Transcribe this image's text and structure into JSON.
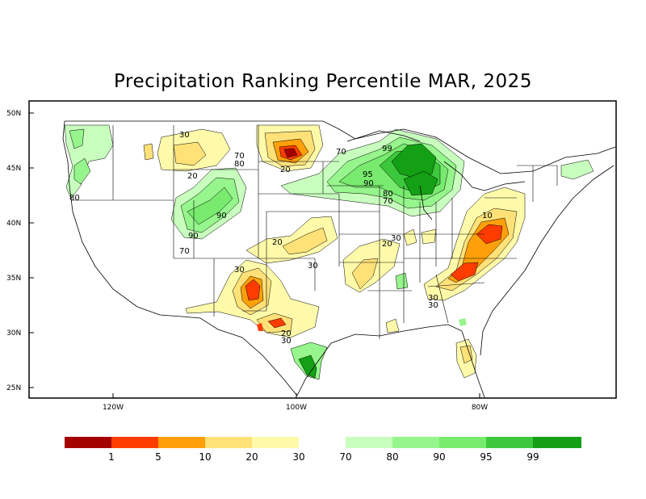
{
  "title": "Precipitation Ranking Percentile MAR, 2025",
  "lat_labels": [
    "50N",
    "45N",
    "40N",
    "35N",
    "30N",
    "25N"
  ],
  "lon_labels": [
    "120W",
    "100W",
    "80W"
  ],
  "legend": {
    "dry": [
      {
        "color": "#a50000"
      },
      {
        "color": "#ff3c00"
      },
      {
        "color": "#ffa00a"
      },
      {
        "color": "#ffe178"
      },
      {
        "color": "#fffaaa"
      }
    ],
    "wet": [
      {
        "color": "#c8ffbe"
      },
      {
        "color": "#96f58c"
      },
      {
        "color": "#78eb6e"
      },
      {
        "color": "#3cc83c"
      },
      {
        "color": "#14a014"
      }
    ],
    "dry_labels": [
      "1",
      "5",
      "10",
      "20",
      "30"
    ],
    "wet_labels": [
      "70",
      "80",
      "90",
      "95",
      "99"
    ]
  },
  "contour_labels": [
    "30",
    "70",
    "80",
    "20",
    "20",
    "70",
    "99",
    "95",
    "90",
    "80",
    "70",
    "80",
    "90",
    "90",
    "70",
    "10",
    "20",
    "30",
    "20",
    "30",
    "30",
    "20",
    "30",
    "30",
    "30"
  ]
}
